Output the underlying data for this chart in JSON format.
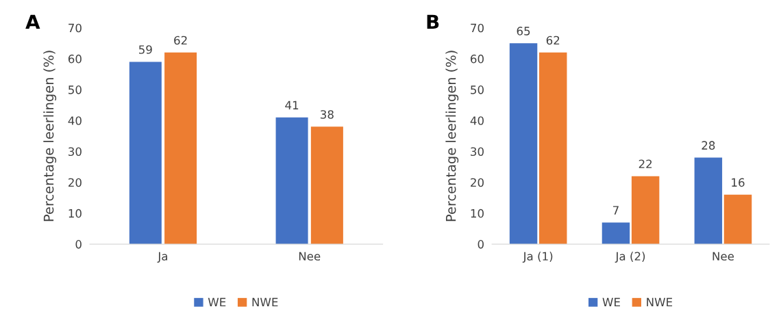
{
  "chart_data": [
    {
      "type": "bar",
      "title": "A",
      "ylabel": "Percentage leerlingen (%)",
      "categories": [
        "Ja",
        "Nee"
      ],
      "series": [
        {
          "name": "WE",
          "color": "#4472c4",
          "values": [
            59,
            41
          ]
        },
        {
          "name": "NWE",
          "color": "#ed7d31",
          "values": [
            62,
            38
          ]
        }
      ],
      "ylim": [
        0,
        70
      ],
      "yticks": [
        0,
        10,
        20,
        30,
        40,
        50,
        60,
        70
      ],
      "grid": false,
      "legend": "bottom",
      "data_labels": true
    },
    {
      "type": "bar",
      "title": "B",
      "ylabel": "Percentage leerlingen (%)",
      "categories": [
        "Ja (1)",
        "Ja (2)",
        "Nee"
      ],
      "series": [
        {
          "name": "WE",
          "color": "#4472c4",
          "values": [
            65,
            7,
            28
          ]
        },
        {
          "name": "NWE",
          "color": "#ed7d31",
          "values": [
            62,
            22,
            16
          ]
        }
      ],
      "ylim": [
        0,
        70
      ],
      "yticks": [
        0,
        10,
        20,
        30,
        40,
        50,
        60,
        70
      ],
      "grid": false,
      "legend": "bottom",
      "data_labels": true
    }
  ]
}
